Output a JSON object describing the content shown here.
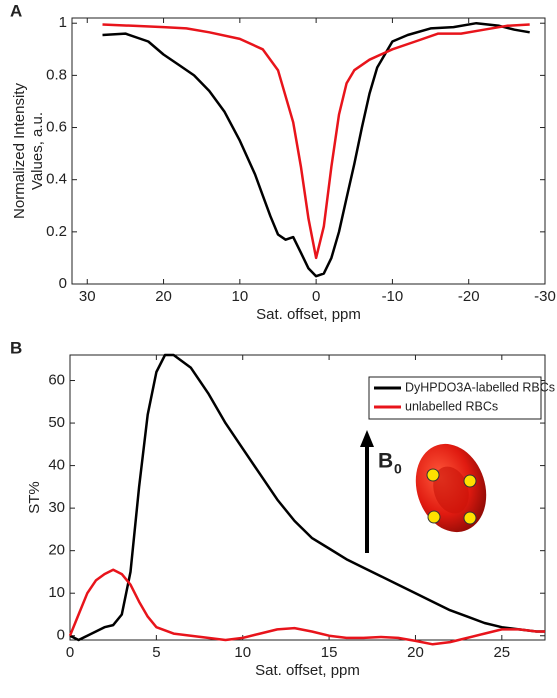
{
  "chart_data": [
    {
      "type": "line",
      "panel_label": "A",
      "xlabel": "Sat. offset, ppm",
      "ylabel": [
        "Normalized Intensity",
        "Values, a.u."
      ],
      "xlim": [
        32,
        -30
      ],
      "ylim": [
        0,
        1.02
      ],
      "xticks": [
        30,
        20,
        10,
        0,
        -10,
        -20,
        -30
      ],
      "yticks": [
        0,
        0.2,
        0.4,
        0.6,
        0.8,
        1
      ],
      "series": [
        {
          "color": "#000000",
          "x": [
            28,
            25,
            22,
            20,
            18,
            16,
            14,
            12,
            10,
            8,
            7,
            6,
            5,
            4,
            3,
            2,
            1,
            0,
            -1,
            -2,
            -3,
            -4,
            -5,
            -6,
            -7,
            -8,
            -10,
            -12,
            -15,
            -18,
            -21,
            -24,
            -26,
            -28
          ],
          "values": [
            0.955,
            0.96,
            0.93,
            0.88,
            0.84,
            0.8,
            0.74,
            0.66,
            0.55,
            0.42,
            0.34,
            0.26,
            0.19,
            0.17,
            0.18,
            0.12,
            0.06,
            0.03,
            0.04,
            0.1,
            0.2,
            0.33,
            0.46,
            0.6,
            0.73,
            0.83,
            0.93,
            0.955,
            0.98,
            0.985,
            1.0,
            0.99,
            0.975,
            0.965
          ]
        },
        {
          "color": "#e8141b",
          "x": [
            28,
            24,
            20,
            17,
            14,
            10,
            7,
            5,
            3,
            2,
            1,
            0,
            -1,
            -2,
            -3,
            -4,
            -5,
            -7,
            -10,
            -13,
            -16,
            -19,
            -22,
            -25,
            -28
          ],
          "values": [
            0.995,
            0.99,
            0.985,
            0.98,
            0.965,
            0.94,
            0.9,
            0.82,
            0.62,
            0.45,
            0.25,
            0.1,
            0.22,
            0.45,
            0.65,
            0.77,
            0.82,
            0.86,
            0.9,
            0.93,
            0.96,
            0.96,
            0.975,
            0.99,
            0.995
          ]
        }
      ]
    },
    {
      "type": "line",
      "panel_label": "B",
      "xlabel": "Sat. offset, ppm",
      "ylabel": [
        "ST%"
      ],
      "xlim": [
        0,
        27.5
      ],
      "ylim": [
        -1,
        66
      ],
      "xticks": [
        0,
        5,
        10,
        15,
        20,
        25
      ],
      "yticks": [
        0,
        10,
        20,
        30,
        40,
        50,
        60
      ],
      "legend": "upper right",
      "annotation": {
        "text": "B",
        "subscript": "0"
      },
      "series": [
        {
          "name": "DyHPDO3A-labelled RBCs",
          "color": "#000000",
          "x": [
            0,
            0.5,
            1,
            1.5,
            2,
            2.5,
            3,
            3.5,
            4,
            4.5,
            5,
            5.5,
            6,
            7,
            8,
            9,
            10,
            11,
            12,
            13,
            14,
            15,
            16,
            17,
            18,
            19,
            20,
            21,
            22,
            23,
            24,
            25,
            26,
            27,
            27.5
          ],
          "values": [
            0,
            -1,
            0,
            1,
            2,
            2.5,
            5,
            15,
            35,
            52,
            62,
            66,
            66,
            63,
            57,
            50,
            44,
            38,
            32,
            27,
            23,
            20.5,
            18,
            16,
            14,
            12,
            10,
            8,
            6,
            4.5,
            3,
            2,
            1.5,
            1,
            1
          ]
        },
        {
          "name": "unlabelled RBCs",
          "color": "#e8141b",
          "x": [
            0,
            0.5,
            1,
            1.5,
            2,
            2.5,
            3,
            3.5,
            4,
            4.5,
            5,
            6,
            7,
            8,
            9,
            10,
            11,
            12,
            13,
            14,
            15,
            16,
            17,
            18,
            19,
            20,
            21,
            22,
            23,
            24,
            25,
            26,
            27,
            27.5
          ],
          "values": [
            0,
            5,
            10,
            13,
            14.5,
            15.5,
            14.5,
            12,
            8,
            4.5,
            2,
            0.5,
            0,
            -0.5,
            -1,
            -0.5,
            0.5,
            1.5,
            1.8,
            1,
            0,
            -0.5,
            -0.5,
            -0.3,
            -0.5,
            -1.2,
            -2,
            -1.5,
            -0.5,
            0.5,
            1.5,
            1.5,
            1,
            1
          ]
        }
      ]
    }
  ]
}
